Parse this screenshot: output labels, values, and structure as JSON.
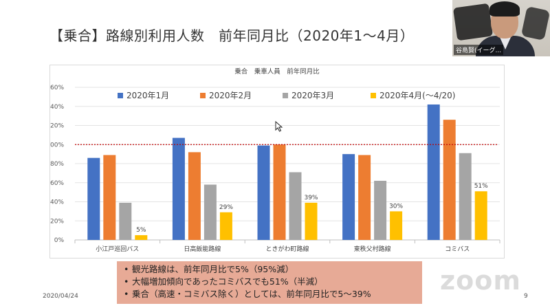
{
  "slide": {
    "title": "【乗合】路線別利用人数　前年同月比（2020年1～4月）",
    "date": "2020/04/24",
    "page_number": "9",
    "watermark": "zoom"
  },
  "webcam": {
    "participant_name": "谷島賢(イーグ..."
  },
  "bullets": [
    "観光路線は、前年同月比で5%（95%減）",
    "大幅増加傾向であったコミバスでも51%（半減）",
    "乗合（高速・コミバス除く）としては、前年同月比で5～39%"
  ],
  "chart_data": {
    "type": "bar",
    "title": "乗合　乗車人員　前年同月比",
    "categories": [
      "小江戸巡回バス",
      "日高飯能路線",
      "ときがわ町路線",
      "東秩父村路線",
      "コミバス"
    ],
    "series": [
      {
        "name": "2020年1月",
        "color": "#4472c4",
        "values": [
          86,
          107,
          99,
          90,
          142
        ]
      },
      {
        "name": "2020年2月",
        "color": "#ed7d31",
        "values": [
          89,
          92,
          100,
          89,
          126
        ]
      },
      {
        "name": "2020年3月",
        "color": "#a5a5a5",
        "values": [
          39,
          58,
          71,
          62,
          91
        ]
      },
      {
        "name": "2020年4月(～4/20)",
        "color": "#ffc000",
        "values": [
          5,
          29,
          39,
          30,
          51
        ]
      }
    ],
    "data_labels": [
      "5%",
      "29%",
      "39%",
      "30%",
      "51%"
    ],
    "y_ticks": [
      "0%",
      "20%",
      "40%",
      "60%",
      "80%",
      "100%",
      "120%",
      "140%",
      "160%"
    ],
    "ylim": [
      0,
      160
    ],
    "reference_line": {
      "value": 100,
      "color": "#c00000",
      "style": "dotted"
    },
    "grid": true,
    "legend_position": "top"
  }
}
